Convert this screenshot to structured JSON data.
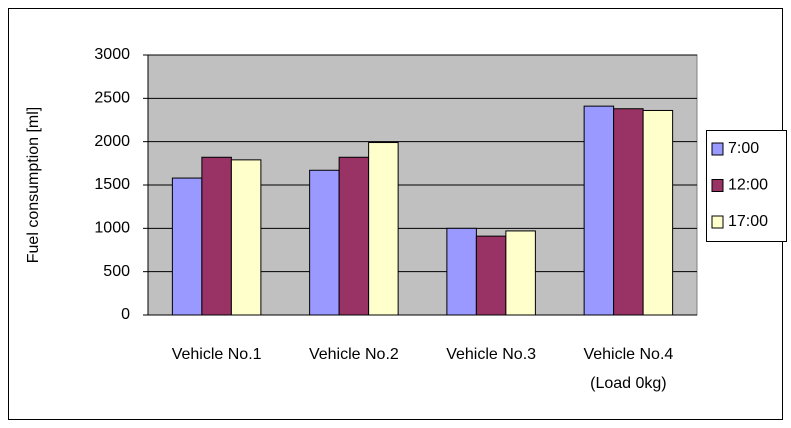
{
  "chart_data": {
    "type": "bar",
    "y_label": "Fuel consumption [ml]",
    "categories": [
      "Vehicle No.1",
      "Vehicle No.2",
      "Vehicle No.3",
      "Vehicle No.4\n(Load 0kg)"
    ],
    "series": [
      {
        "name": "7:00",
        "color": "#9999ff",
        "values": [
          1580,
          1670,
          1000,
          2410
        ]
      },
      {
        "name": "12:00",
        "color": "#993366",
        "values": [
          1820,
          1820,
          910,
          2380
        ]
      },
      {
        "name": "17:00",
        "color": "#ffffcc",
        "values": [
          1790,
          1990,
          970,
          2360
        ]
      }
    ],
    "ylim": [
      0,
      3000
    ],
    "yticks": [
      0,
      500,
      1000,
      1500,
      2000,
      2500,
      3000
    ],
    "grid": true,
    "legend": "right"
  }
}
